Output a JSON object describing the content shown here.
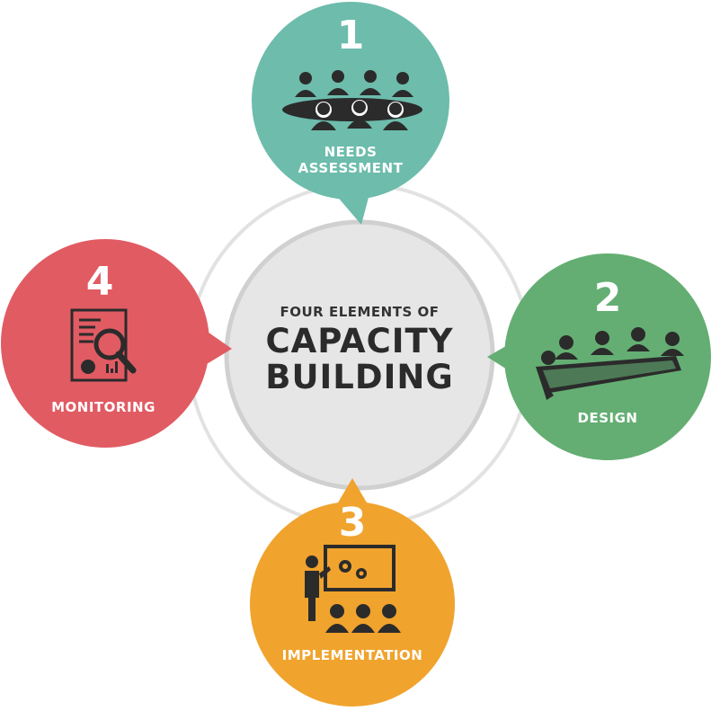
{
  "center": {
    "subtitle": "FOUR ELEMENTS OF",
    "title_line1": "CAPACITY",
    "title_line2": "BUILDING"
  },
  "elements": [
    {
      "number": "1",
      "label_line1": "NEEDS",
      "label_line2": "ASSESSMENT",
      "color": "#6dbcac",
      "icon": "meeting-table-icon"
    },
    {
      "number": "2",
      "label_line1": "DESIGN",
      "label_line2": "",
      "color": "#64ae73",
      "icon": "planning-table-icon"
    },
    {
      "number": "3",
      "label_line1": "IMPLEMENTATION",
      "label_line2": "",
      "color": "#f0a32d",
      "icon": "presentation-icon"
    },
    {
      "number": "4",
      "label_line1": "MONITORING",
      "label_line2": "",
      "color": "#e15b63",
      "icon": "report-magnifier-icon"
    }
  ],
  "colors": {
    "center_fill": "#e6e6e6",
    "center_ring": "#d0d0d0",
    "outer_ring": "#e2e2e2",
    "icon_dark": "#2b2b2b"
  }
}
